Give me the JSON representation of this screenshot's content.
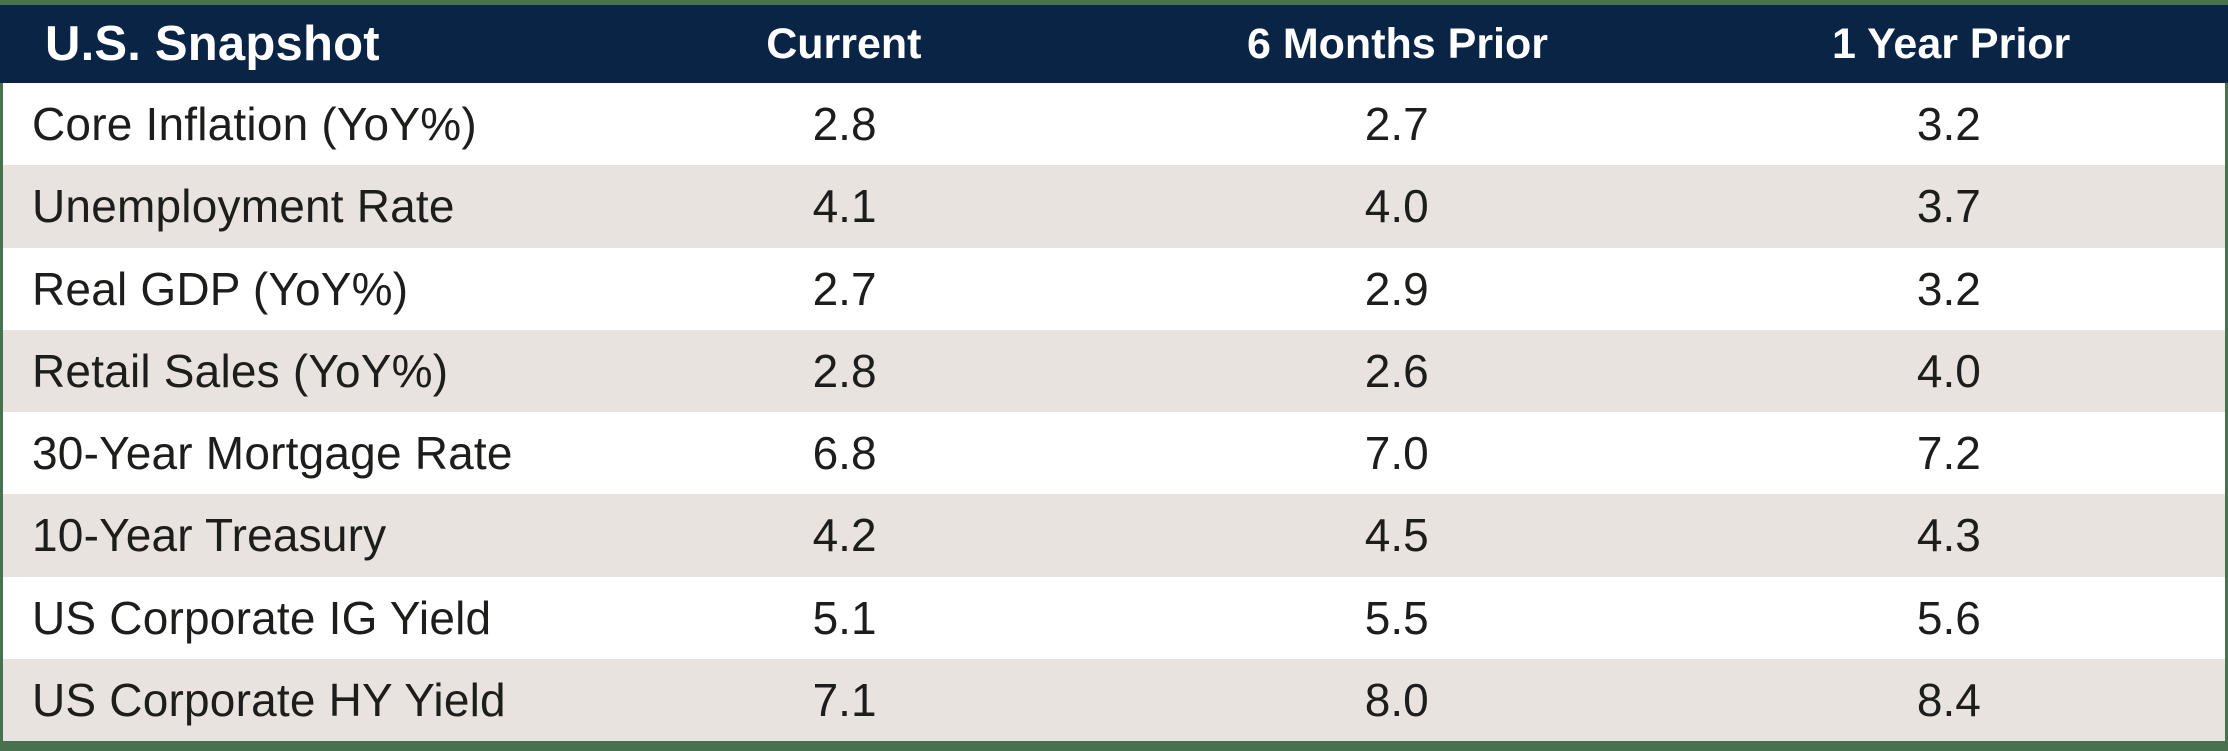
{
  "chart_data": {
    "type": "table",
    "title": "U.S. Snapshot",
    "columns": [
      "Current",
      "6 Months Prior",
      "1 Year Prior"
    ],
    "rows": [
      {
        "label": "Core Inflation (YoY%)",
        "values": [
          "2.8",
          "2.7",
          "3.2"
        ]
      },
      {
        "label": "Unemployment Rate",
        "values": [
          "4.1",
          "4.0",
          "3.7"
        ]
      },
      {
        "label": "Real GDP (YoY%)",
        "values": [
          "2.7",
          "2.9",
          "3.2"
        ]
      },
      {
        "label": "Retail Sales (YoY%)",
        "values": [
          "2.8",
          "2.6",
          "4.0"
        ]
      },
      {
        "label": "30-Year Mortgage Rate",
        "values": [
          "6.8",
          "7.0",
          "7.2"
        ]
      },
      {
        "label": "10-Year Treasury",
        "values": [
          "4.2",
          "4.5",
          "4.3"
        ]
      },
      {
        "label": "US Corporate IG Yield",
        "values": [
          "5.1",
          "5.5",
          "5.6"
        ]
      },
      {
        "label": "US Corporate HY Yield",
        "values": [
          "7.1",
          "8.0",
          "8.4"
        ]
      }
    ]
  },
  "colors": {
    "frame_border_green": "#48714f",
    "header_bg_navy": "#0a2446",
    "header_text": "#ffffff",
    "row_white": "#ffffff",
    "row_beige": "#e8e3de",
    "body_text": "#1d1d1b"
  }
}
